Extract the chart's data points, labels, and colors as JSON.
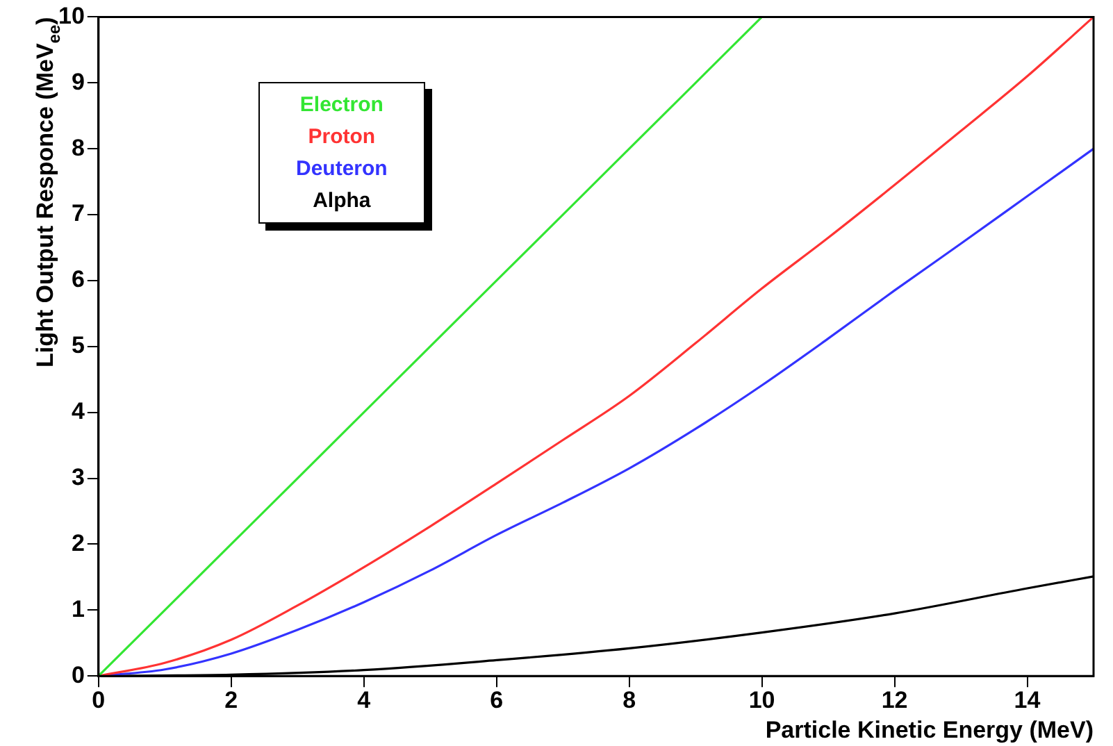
{
  "chart_data": {
    "type": "line",
    "xlabel": "Particle Kinetic Energy (MeV)",
    "ylabel": "Light Output Responce (MeV$_{ee}$)",
    "xlim": [
      0,
      15
    ],
    "ylim": [
      0,
      10
    ],
    "xticks": [
      0,
      2,
      4,
      6,
      8,
      10,
      12,
      14
    ],
    "yticks": [
      0,
      1,
      2,
      3,
      4,
      5,
      6,
      7,
      8,
      9,
      10
    ],
    "grid": false,
    "legend": "top left",
    "marker": "none",
    "line_style": "solid",
    "series": [
      {
        "name": "Electron",
        "color": "#33e633",
        "x": [
          0,
          2,
          4,
          6,
          8,
          10
        ],
        "values": [
          0,
          2,
          4,
          6,
          8,
          10
        ]
      },
      {
        "name": "Proton",
        "color": "#ff3333",
        "x": [
          0,
          1,
          2,
          3,
          4,
          5,
          6,
          7,
          8,
          9,
          10,
          11,
          12,
          13,
          14,
          15
        ],
        "values": [
          0,
          0.2,
          0.55,
          1.07,
          1.65,
          2.27,
          2.92,
          3.58,
          4.25,
          5.05,
          5.88,
          6.65,
          7.45,
          8.27,
          9.1,
          10
        ]
      },
      {
        "name": "Deuteron",
        "color": "#3333ff",
        "x": [
          0,
          1,
          2,
          3,
          4,
          5,
          6,
          7,
          8,
          9,
          10,
          11,
          12,
          13,
          14,
          15
        ],
        "values": [
          0,
          0.1,
          0.34,
          0.7,
          1.12,
          1.6,
          2.14,
          2.63,
          3.15,
          3.75,
          4.41,
          5.12,
          5.85,
          6.56,
          7.28,
          8
        ]
      },
      {
        "name": "Alpha",
        "color": "#000000",
        "x": [
          0,
          2,
          4,
          6,
          8,
          10,
          12,
          14,
          15
        ],
        "values": [
          0,
          0.02,
          0.09,
          0.24,
          0.42,
          0.66,
          0.95,
          1.33,
          1.51
        ]
      }
    ]
  }
}
